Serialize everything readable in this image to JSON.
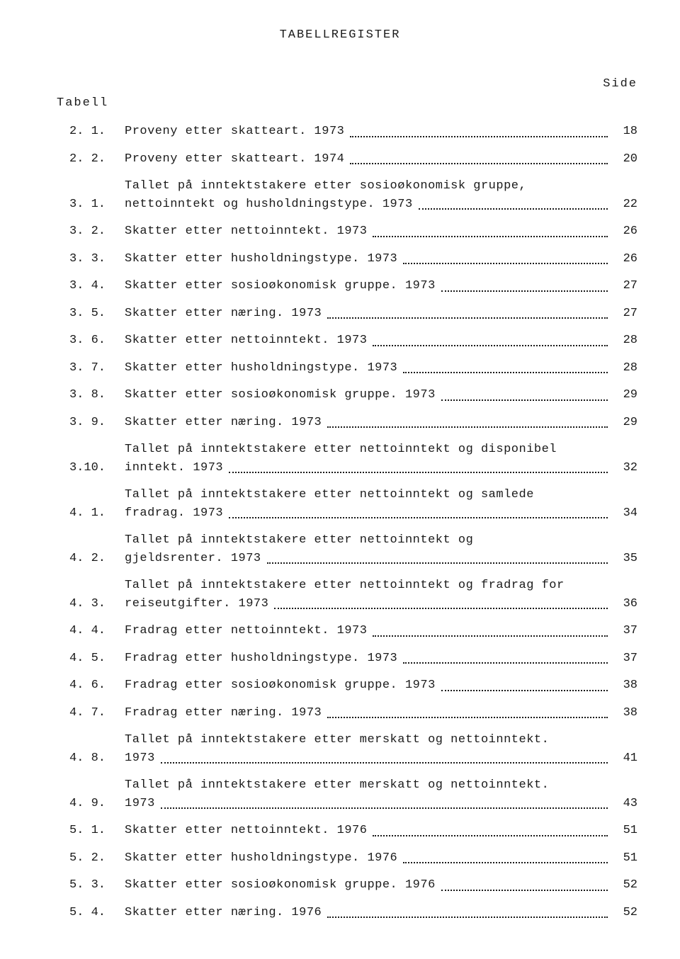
{
  "header": "TABELLREGISTER",
  "side_label": "Side",
  "table_label": "Tabell",
  "colors": {
    "background": "#ffffff",
    "text": "#1a1a1a"
  },
  "typography": {
    "font_family": "Courier New",
    "body_fontsize": 17,
    "header_letter_spacing": 2
  },
  "entries": [
    {
      "num": "2. 1.",
      "lines": [
        "Proveny etter skatteart.  1973"
      ],
      "page": "18"
    },
    {
      "num": "2. 2.",
      "lines": [
        "Proveny etter skatteart.  1974"
      ],
      "page": "20"
    },
    {
      "num": "3. 1.",
      "lines": [
        "Tallet på inntektstakere etter sosioøkonomisk gruppe,",
        "nettoinntekt og husholdningstype.  1973"
      ],
      "page": "22"
    },
    {
      "num": "3. 2.",
      "lines": [
        "Skatter etter nettoinntekt.  1973"
      ],
      "page": "26"
    },
    {
      "num": "3. 3.",
      "lines": [
        "Skatter etter husholdningstype.  1973"
      ],
      "page": "26"
    },
    {
      "num": "3. 4.",
      "lines": [
        "Skatter etter sosioøkonomisk gruppe.  1973"
      ],
      "page": "27"
    },
    {
      "num": "3. 5.",
      "lines": [
        "Skatter etter næring.  1973"
      ],
      "page": "27"
    },
    {
      "num": "3. 6.",
      "lines": [
        "Skatter etter nettoinntekt.  1973"
      ],
      "page": "28"
    },
    {
      "num": "3. 7.",
      "lines": [
        "Skatter etter husholdningstype.  1973"
      ],
      "page": "28"
    },
    {
      "num": "3. 8.",
      "lines": [
        "Skatter etter sosioøkonomisk gruppe.  1973"
      ],
      "page": "29"
    },
    {
      "num": "3. 9.",
      "lines": [
        "Skatter etter næring.  1973"
      ],
      "page": "29"
    },
    {
      "num": "3.10.",
      "lines": [
        "Tallet på inntektstakere etter nettoinntekt og disponibel",
        "inntekt.  1973"
      ],
      "page": "32"
    },
    {
      "num": "4. 1.",
      "lines": [
        "Tallet på inntektstakere etter nettoinntekt og samlede",
        "fradrag.  1973"
      ],
      "page": "34"
    },
    {
      "num": "4. 2.",
      "lines": [
        "Tallet på inntektstakere etter nettoinntekt og",
        "gjeldsrenter.  1973"
      ],
      "page": "35"
    },
    {
      "num": "4. 3.",
      "lines": [
        "Tallet på inntektstakere etter nettoinntekt og fradrag for",
        "reiseutgifter.  1973"
      ],
      "page": "36"
    },
    {
      "num": "4. 4.",
      "lines": [
        "Fradrag etter nettoinntekt.  1973"
      ],
      "page": "37"
    },
    {
      "num": "4. 5.",
      "lines": [
        "Fradrag etter husholdningstype.  1973"
      ],
      "page": "37"
    },
    {
      "num": "4. 6.",
      "lines": [
        "Fradrag etter sosioøkonomisk gruppe.  1973"
      ],
      "page": "38"
    },
    {
      "num": "4. 7.",
      "lines": [
        "Fradrag etter næring.  1973"
      ],
      "page": "38"
    },
    {
      "num": "4. 8.",
      "lines": [
        "Tallet på inntektstakere etter merskatt og nettoinntekt.",
        "1973"
      ],
      "page": "41"
    },
    {
      "num": "4. 9.",
      "lines": [
        "Tallet på inntektstakere etter merskatt og nettoinntekt.",
        "1973"
      ],
      "page": "43"
    },
    {
      "num": "5. 1.",
      "lines": [
        "Skatter etter nettoinntekt.  1976"
      ],
      "page": "51"
    },
    {
      "num": "5. 2.",
      "lines": [
        "Skatter etter husholdningstype.  1976"
      ],
      "page": "51"
    },
    {
      "num": "5. 3.",
      "lines": [
        "Skatter etter sosioøkonomisk gruppe.  1976"
      ],
      "page": "52"
    },
    {
      "num": "5. 4.",
      "lines": [
        "Skatter etter næring.  1976"
      ],
      "page": "52"
    }
  ]
}
